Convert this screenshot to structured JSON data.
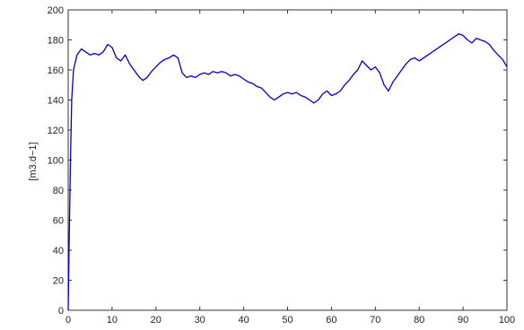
{
  "chart_data": {
    "type": "line",
    "title": "",
    "xlabel": "",
    "ylabel": "[m3.d−1]",
    "xlim": [
      0,
      100
    ],
    "ylim": [
      0,
      200
    ],
    "x_ticks": [
      "0",
      "10",
      "20",
      "30",
      "40",
      "50",
      "60",
      "70",
      "80",
      "90",
      "100"
    ],
    "y_ticks": [
      "0",
      "20",
      "40",
      "60",
      "80",
      "100",
      "120",
      "140",
      "160",
      "180",
      "200"
    ],
    "grid": false,
    "legend": "none",
    "series": [
      {
        "color": "#0000c8",
        "x": [
          0,
          0.2,
          0.5,
          0.8,
          1.2,
          2,
          3,
          4,
          5,
          6,
          7,
          8,
          9,
          10,
          11,
          12,
          13,
          14,
          15,
          16,
          17,
          18,
          19,
          20,
          21,
          22,
          23,
          24,
          25,
          26,
          27,
          28,
          29,
          30,
          31,
          32,
          33,
          34,
          35,
          36,
          37,
          38,
          39,
          40,
          41,
          42,
          43,
          44,
          45,
          46,
          47,
          48,
          49,
          50,
          51,
          52,
          53,
          54,
          55,
          56,
          57,
          58,
          59,
          60,
          61,
          62,
          63,
          64,
          65,
          66,
          67,
          68,
          69,
          70,
          71,
          72,
          73,
          74,
          75,
          76,
          77,
          78,
          79,
          80,
          81,
          82,
          83,
          84,
          85,
          86,
          87,
          88,
          89,
          90,
          91,
          92,
          93,
          94,
          95,
          96,
          97,
          98,
          99,
          100
        ],
        "y": [
          0,
          42,
          95,
          140,
          160,
          170,
          174,
          172,
          170,
          171,
          170,
          172,
          177,
          175,
          168,
          166,
          170,
          164,
          160,
          156,
          153,
          155,
          159,
          162,
          165,
          167,
          168,
          170,
          168,
          158,
          155,
          156,
          155,
          157,
          158,
          157,
          159,
          158,
          159,
          158,
          156,
          157,
          156,
          154,
          152,
          151,
          149,
          148,
          145,
          142,
          140,
          142,
          144,
          145,
          144,
          145,
          143,
          142,
          140,
          138,
          140,
          144,
          146,
          143,
          144,
          146,
          150,
          153,
          157,
          160,
          166,
          163,
          160,
          162,
          158,
          150,
          146,
          152,
          156,
          160,
          164,
          167,
          168,
          166,
          168,
          170,
          172,
          174,
          176,
          178,
          180,
          182,
          184,
          183,
          180,
          178,
          181,
          180,
          179,
          177,
          173,
          170,
          167,
          162
        ]
      }
    ]
  }
}
